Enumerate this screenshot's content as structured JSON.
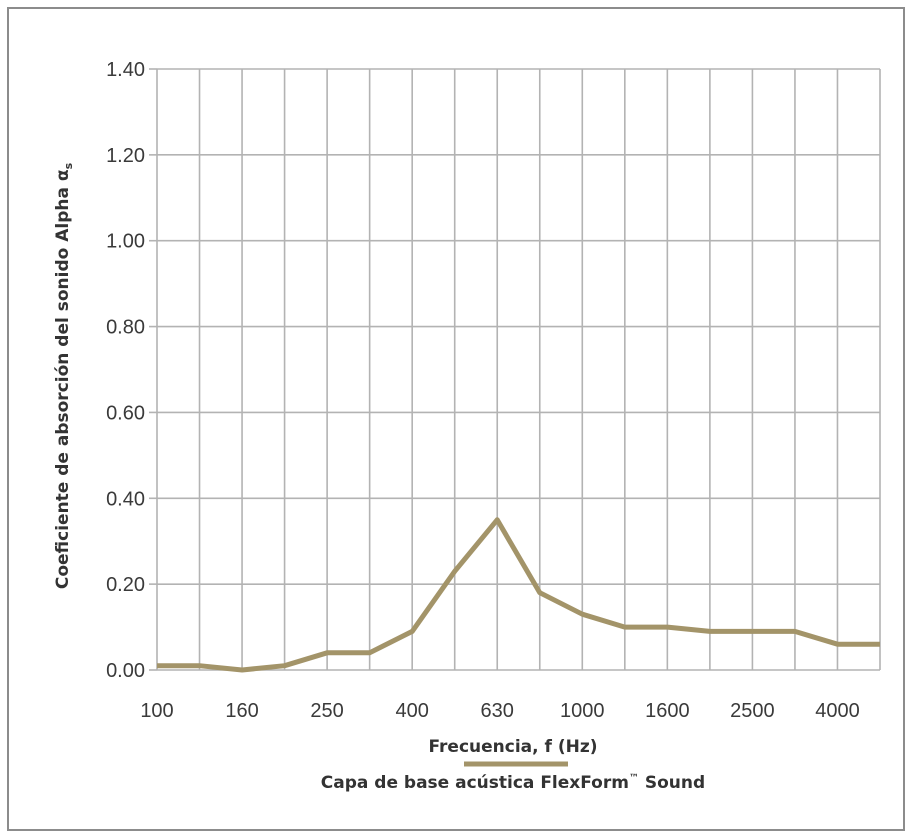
{
  "chart_data": {
    "type": "line",
    "title": "",
    "xlabel": "Frecuencia, f (Hz)",
    "ylabel": "Coeficiente de absorción del sonido Alpha αs",
    "ylabel_main": "Coeficiente de absorción del sonido Alpha α",
    "ylabel_sub": "s",
    "x_labels": [
      "100",
      "160",
      "250",
      "400",
      "630",
      "1000",
      "1600",
      "2500",
      "4000"
    ],
    "x": [
      100,
      125,
      160,
      200,
      250,
      315,
      400,
      500,
      630,
      800,
      1000,
      1250,
      1600,
      2000,
      2500,
      3150,
      4000,
      5000
    ],
    "y_ticks": [
      "0.00",
      "0.20",
      "0.40",
      "0.60",
      "0.80",
      "1.00",
      "1.20",
      "1.40"
    ],
    "ylim": [
      0,
      1.4
    ],
    "grid": true,
    "series": [
      {
        "name": "Capa de base acústica FlexForm™ Sound",
        "color": "#a39469",
        "values": [
          0.01,
          0.01,
          0.0,
          0.01,
          0.04,
          0.04,
          0.09,
          0.23,
          0.35,
          0.18,
          0.13,
          0.1,
          0.1,
          0.09,
          0.09,
          0.09,
          0.06,
          0.06
        ]
      }
    ],
    "legend": {
      "position": "bottom-center",
      "label_main": "Capa de base acústica FlexForm",
      "label_mark": "™",
      "label_tail": " Sound"
    }
  }
}
